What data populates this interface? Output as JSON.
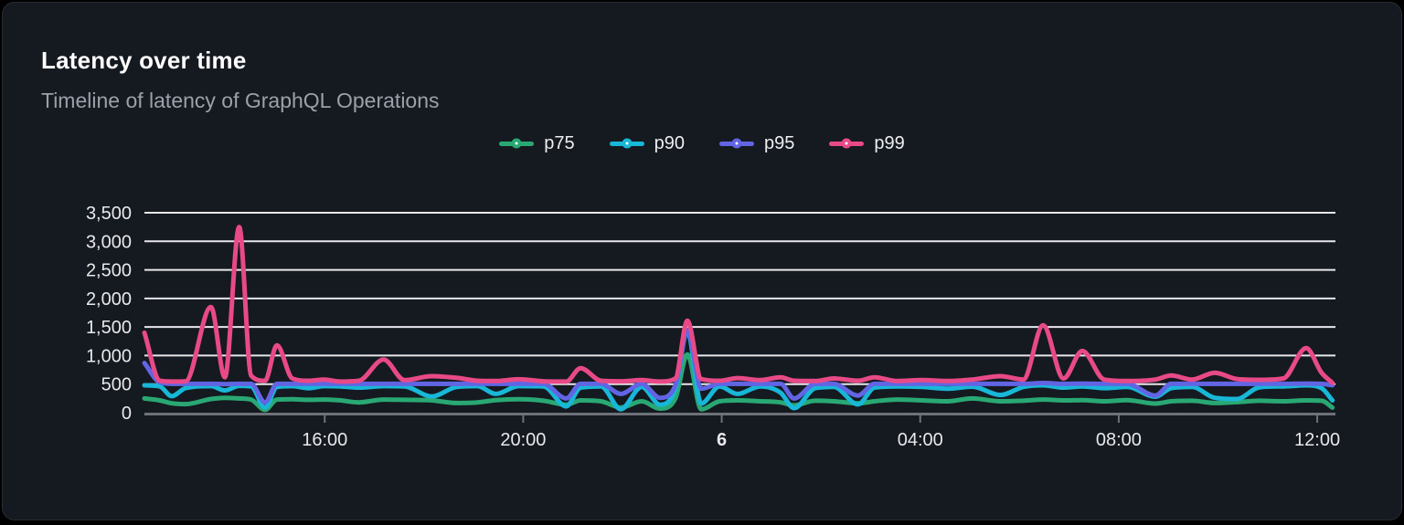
{
  "theme": {
    "outer_bg": "#000000",
    "card_bg": "#151920",
    "card_border": "#282c33",
    "title_color": "#ffffff",
    "subtitle_color": "#9ba1a8",
    "grid_color": "#e6e7e9",
    "axis_color": "#6e7278",
    "tick_label_color": "#e8e9eb",
    "legend_label_color": "#edeef0"
  },
  "chart_data": {
    "type": "line",
    "title": "Latency over time",
    "subtitle": "Timeline of latency of GraphQL Operations",
    "ylabel": "",
    "xlabel": "",
    "ylim": [
      0,
      3500
    ],
    "xlim_hours": [
      0,
      24
    ],
    "grid": "horizontal",
    "legend_position": "top-center",
    "x_unit": "hours from chart start (~12:20)",
    "y_ticks": {
      "values": [
        0,
        500,
        1000,
        1500,
        2000,
        2500,
        3000,
        3500
      ],
      "labels": [
        "0",
        "500",
        "1,000",
        "1,500",
        "2,000",
        "2,500",
        "3,000",
        "3,500"
      ]
    },
    "x_ticks": [
      {
        "pos": 3.633,
        "label": "16:00",
        "bold": false
      },
      {
        "pos": 7.633,
        "label": "20:00",
        "bold": false
      },
      {
        "pos": 11.633,
        "label": "6",
        "bold": true
      },
      {
        "pos": 15.633,
        "label": "04:00",
        "bold": false
      },
      {
        "pos": 19.633,
        "label": "08:00",
        "bold": false
      },
      {
        "pos": 23.633,
        "label": "12:00",
        "bold": false
      }
    ],
    "x": [
      0,
      0.31,
      0.55,
      0.83,
      1.34,
      1.62,
      1.91,
      2.15,
      2.43,
      2.67,
      2.98,
      3.31,
      3.62,
      3.95,
      4.32,
      4.82,
      5.24,
      5.79,
      6.29,
      6.71,
      7.08,
      7.54,
      8.04,
      8.5,
      8.79,
      9.2,
      9.6,
      10.02,
      10.39,
      10.7,
      10.94,
      11.22,
      11.59,
      11.95,
      12.41,
      12.82,
      13.09,
      13.52,
      13.89,
      14.38,
      14.71,
      15.17,
      15.67,
      16.18,
      16.68,
      17.25,
      17.71,
      18.11,
      18.52,
      18.9,
      19.34,
      19.8,
      20.37,
      20.69,
      21.11,
      21.57,
      22.01,
      22.47,
      22.95,
      23.41,
      23.72,
      23.94
    ],
    "series": [
      {
        "name": "p75",
        "color": "#2aa873",
        "values": [
          250,
          215,
          165,
          150,
          240,
          260,
          250,
          230,
          50,
          230,
          235,
          225,
          230,
          215,
          180,
          230,
          225,
          215,
          170,
          180,
          220,
          235,
          210,
          140,
          215,
          200,
          90,
          200,
          70,
          250,
          1020,
          60,
          200,
          215,
          200,
          180,
          130,
          210,
          200,
          165,
          200,
          230,
          215,
          200,
          250,
          200,
          210,
          230,
          215,
          220,
          200,
          220,
          160,
          200,
          210,
          170,
          185,
          210,
          200,
          215,
          210,
          90
        ]
      },
      {
        "name": "p90",
        "color": "#18b7d7",
        "values": [
          480,
          460,
          290,
          430,
          465,
          390,
          470,
          460,
          90,
          450,
          465,
          430,
          465,
          460,
          440,
          465,
          460,
          285,
          450,
          465,
          330,
          465,
          460,
          110,
          440,
          460,
          60,
          450,
          140,
          420,
          1430,
          160,
          460,
          330,
          460,
          350,
          80,
          430,
          450,
          145,
          440,
          460,
          450,
          420,
          455,
          310,
          450,
          480,
          440,
          460,
          430,
          450,
          280,
          430,
          450,
          260,
          240,
          445,
          460,
          480,
          430,
          215
        ]
      },
      {
        "name": "p95",
        "color": "#6165e4",
        "values": [
          870,
          530,
          505,
          505,
          505,
          500,
          505,
          505,
          180,
          505,
          505,
          505,
          505,
          505,
          505,
          505,
          505,
          505,
          505,
          505,
          505,
          505,
          505,
          250,
          505,
          505,
          330,
          505,
          260,
          480,
          1450,
          420,
          505,
          505,
          505,
          505,
          250,
          505,
          505,
          300,
          505,
          505,
          505,
          505,
          505,
          505,
          505,
          520,
          505,
          510,
          505,
          505,
          300,
          505,
          505,
          505,
          505,
          505,
          505,
          510,
          505,
          480
        ]
      },
      {
        "name": "p99",
        "color": "#e84a87",
        "values": [
          1400,
          560,
          545,
          550,
          1850,
          620,
          3250,
          650,
          560,
          1180,
          600,
          560,
          580,
          545,
          560,
          930,
          570,
          640,
          610,
          560,
          555,
          585,
          550,
          545,
          780,
          560,
          550,
          570,
          545,
          600,
          1610,
          590,
          560,
          605,
          570,
          620,
          560,
          555,
          600,
          560,
          620,
          555,
          570,
          555,
          580,
          640,
          580,
          1530,
          600,
          1080,
          580,
          555,
          580,
          650,
          580,
          700,
          590,
          575,
          600,
          1130,
          700,
          520
        ]
      }
    ]
  }
}
